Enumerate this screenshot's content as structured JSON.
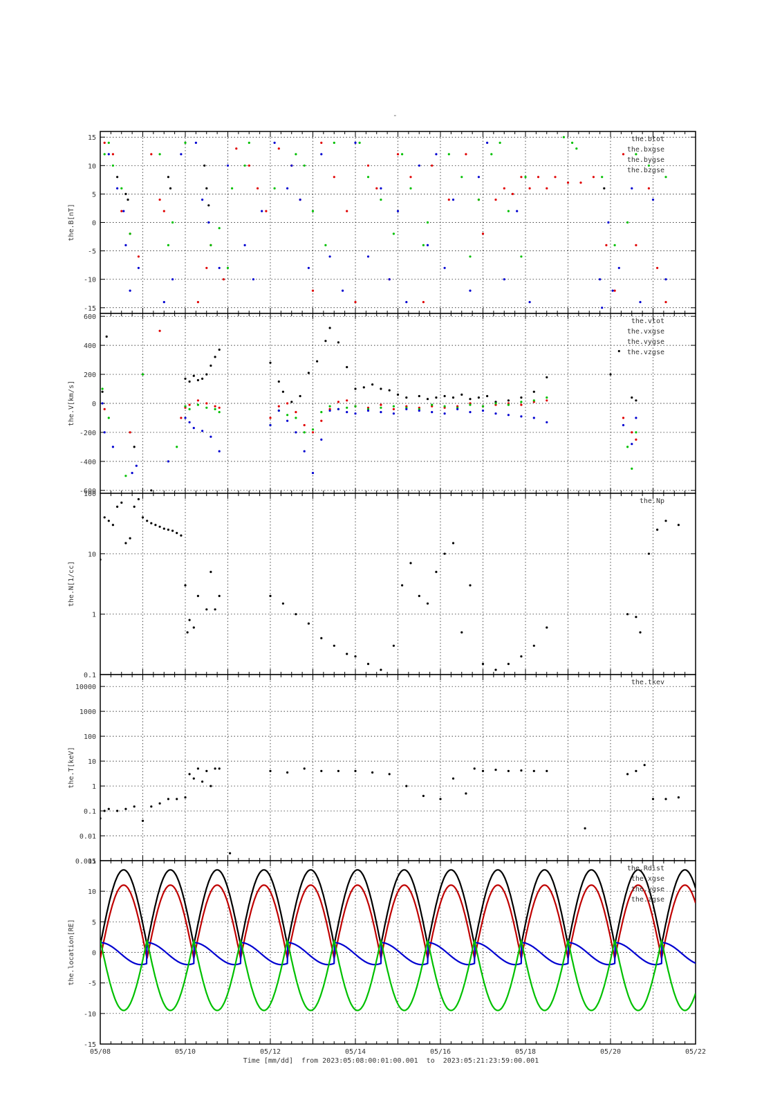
{
  "page": {
    "title": "-"
  },
  "x_axis": {
    "tick_labels": [
      "05/08",
      "05/10",
      "05/12",
      "05/14",
      "05/16",
      "05/18",
      "05/20",
      "05/22"
    ],
    "tick_days": [
      0,
      2,
      4,
      6,
      8,
      10,
      12,
      14
    ],
    "minor_step_days": 0.25,
    "range_days": [
      0,
      14
    ],
    "footer": "Time [mm/dd]  from 2023:05:08:00:01:00.001  to  2023:05:21:23:59:00.001"
  },
  "colors": {
    "black": "#000000",
    "red": "#e00000",
    "green": "#00c000",
    "blue": "#0000d0"
  },
  "chart_data": [
    {
      "type": "scatter",
      "ylabel": "the.B[nT]",
      "scale": "linear",
      "ylim": [
        -16,
        16
      ],
      "ticks": [
        -15,
        -10,
        -5,
        0,
        5,
        10,
        15
      ],
      "tick_labels": [
        "-15",
        "-10",
        "-5",
        "0",
        "5",
        "10",
        "15"
      ],
      "grid": true,
      "legend_placement": "top-right",
      "series": [
        {
          "name": "the.btot",
          "color": "#000000",
          "x": [
            0.4,
            0.6,
            0.65,
            1.6,
            1.65,
            2.45,
            2.5,
            2.55,
            11.85
          ],
          "y": [
            8,
            5,
            4,
            8,
            6,
            10,
            6,
            3,
            6
          ]
        },
        {
          "name": "the.bxgse",
          "color": "#e00000",
          "x": [
            0.1,
            0.3,
            0.5,
            0.7,
            0.9,
            1.2,
            1.4,
            1.5,
            2.3,
            2.5,
            2.6,
            2.9,
            3.2,
            3.5,
            3.7,
            3.9,
            4.2,
            4.5,
            4.7,
            5.0,
            5.2,
            5.5,
            5.8,
            6.0,
            6.3,
            6.5,
            6.8,
            7.0,
            7.3,
            7.6,
            7.8,
            8.2,
            8.6,
            8.9,
            9.0,
            9.3,
            9.5,
            9.7,
            9.9,
            10.1,
            10.3,
            10.5,
            10.7,
            11.0,
            11.3,
            11.6,
            11.9,
            12.1,
            12.3,
            12.6,
            12.9,
            13.1,
            13.3
          ],
          "y": [
            14,
            12,
            2,
            -2,
            -6,
            12,
            4,
            2,
            -14,
            -8,
            -4,
            -10,
            13,
            10,
            6,
            2,
            13,
            10,
            4,
            -12,
            14,
            8,
            2,
            -14,
            10,
            6,
            -10,
            12,
            8,
            -14,
            10,
            4,
            12,
            4,
            -2,
            4,
            6,
            5,
            8,
            6,
            8,
            6,
            8,
            7,
            7,
            8,
            -4,
            -12,
            12,
            -4,
            6,
            -8,
            -14
          ]
        },
        {
          "name": "the.bygse",
          "color": "#00c000",
          "x": [
            0.1,
            0.2,
            0.3,
            0.5,
            0.7,
            1.4,
            1.6,
            1.7,
            2.0,
            2.6,
            2.8,
            3.0,
            3.1,
            3.4,
            3.5,
            4.1,
            4.6,
            4.8,
            5.0,
            5.3,
            5.5,
            6.1,
            6.3,
            6.6,
            6.9,
            7.1,
            7.3,
            7.6,
            7.7,
            8.2,
            8.5,
            8.7,
            8.9,
            9.2,
            9.4,
            9.6,
            9.9,
            10.0,
            10.9,
            11.1,
            11.2,
            11.8,
            12.1,
            12.4,
            12.6,
            12.9,
            13.3
          ],
          "y": [
            12,
            14,
            10,
            6,
            -2,
            12,
            -4,
            0,
            14,
            -4,
            -1,
            -8,
            6,
            10,
            14,
            6,
            12,
            10,
            2,
            -4,
            14,
            14,
            8,
            4,
            -2,
            12,
            6,
            -4,
            0,
            12,
            8,
            -6,
            4,
            12,
            14,
            2,
            -6,
            8,
            15,
            14,
            13,
            8,
            -4,
            0,
            12,
            10,
            8
          ]
        },
        {
          "name": "the.bzgse",
          "color": "#0000d0",
          "x": [
            0.2,
            0.4,
            0.55,
            0.6,
            0.7,
            0.9,
            1.5,
            1.7,
            1.9,
            2.25,
            2.4,
            2.55,
            2.8,
            3.0,
            3.4,
            3.6,
            3.8,
            4.1,
            4.4,
            4.5,
            4.7,
            4.9,
            5.2,
            5.4,
            5.7,
            6.0,
            6.3,
            6.6,
            6.8,
            7.0,
            7.2,
            7.5,
            7.7,
            7.9,
            8.1,
            8.3,
            8.7,
            8.9,
            9.1,
            9.5,
            9.8,
            10.1,
            11.75,
            11.8,
            11.95,
            12.05,
            12.2,
            12.5,
            12.7,
            13.0,
            13.3
          ],
          "y": [
            12,
            6,
            2,
            -4,
            -12,
            -8,
            -14,
            -10,
            12,
            14,
            4,
            0,
            -8,
            10,
            -4,
            -10,
            2,
            14,
            6,
            10,
            4,
            -8,
            12,
            -6,
            -12,
            14,
            -6,
            6,
            -10,
            2,
            -14,
            10,
            -4,
            12,
            -8,
            4,
            -12,
            8,
            14,
            -10,
            2,
            -14,
            -10,
            -15,
            0,
            -12,
            -8,
            6,
            -14,
            4,
            -10
          ]
        }
      ]
    },
    {
      "type": "scatter",
      "ylabel": "the.V[km/s]",
      "scale": "linear",
      "ylim": [
        -620,
        620
      ],
      "ticks": [
        -600,
        -400,
        -200,
        0,
        200,
        400,
        600
      ],
      "tick_labels": [
        "-600",
        "-400",
        "-200",
        "0",
        "200",
        "400",
        "600"
      ],
      "grid": true,
      "legend_placement": "top-right",
      "series": [
        {
          "name": "the.vtot",
          "color": "#000000",
          "x": [
            0.05,
            0.15,
            0.8,
            1.2,
            2.0,
            2.1,
            2.2,
            2.3,
            2.4,
            2.5,
            2.6,
            2.7,
            2.8,
            4.0,
            4.2,
            4.3,
            4.5,
            4.7,
            4.9,
            5.1,
            5.3,
            5.4,
            5.6,
            5.8,
            6.0,
            6.2,
            6.4,
            6.6,
            6.8,
            7.0,
            7.2,
            7.5,
            7.7,
            7.9,
            8.1,
            8.3,
            8.5,
            8.7,
            8.9,
            9.1,
            9.3,
            9.6,
            9.9,
            10.2,
            10.5,
            12.0,
            12.2,
            12.5,
            12.6
          ],
          "y": [
            80,
            460,
            -300,
            -600,
            170,
            150,
            190,
            160,
            170,
            200,
            260,
            320,
            370,
            280,
            150,
            80,
            10,
            50,
            210,
            290,
            430,
            520,
            420,
            250,
            100,
            110,
            130,
            100,
            90,
            60,
            40,
            50,
            30,
            40,
            50,
            40,
            60,
            30,
            40,
            50,
            10,
            20,
            40,
            80,
            180,
            200,
            360,
            40,
            20
          ]
        },
        {
          "name": "the.vxgse",
          "color": "#e00000",
          "x": [
            0.1,
            0.7,
            1.4,
            1.9,
            2.0,
            2.1,
            2.3,
            2.5,
            2.7,
            2.8,
            4.0,
            4.2,
            4.4,
            4.6,
            4.8,
            5.0,
            5.2,
            5.4,
            5.6,
            5.8,
            6.0,
            6.3,
            6.6,
            6.9,
            7.2,
            7.5,
            7.8,
            8.1,
            8.4,
            8.7,
            9.0,
            9.3,
            9.6,
            9.9,
            10.2,
            10.5,
            12.3,
            12.5,
            12.6
          ],
          "y": [
            -40,
            -200,
            500,
            -100,
            -30,
            -10,
            20,
            0,
            -20,
            -30,
            -100,
            -20,
            0,
            -60,
            -150,
            -200,
            -120,
            -40,
            10,
            20,
            -20,
            -30,
            -10,
            -40,
            -20,
            -30,
            -20,
            -30,
            -20,
            0,
            -20,
            -10,
            0,
            -10,
            10,
            20,
            -100,
            -200,
            -250
          ]
        },
        {
          "name": "the.vygse",
          "color": "#00c000",
          "x": [
            0.05,
            0.2,
            0.6,
            1.0,
            1.8,
            2.0,
            2.1,
            2.3,
            2.5,
            2.7,
            2.8,
            4.0,
            4.2,
            4.4,
            4.6,
            4.8,
            5.0,
            5.2,
            5.4,
            5.6,
            5.8,
            6.0,
            6.3,
            6.6,
            6.9,
            7.2,
            7.5,
            7.8,
            8.1,
            8.4,
            8.7,
            9.0,
            9.3,
            9.6,
            9.9,
            10.2,
            10.5,
            12.4,
            12.5,
            12.6
          ],
          "y": [
            100,
            -100,
            -500,
            200,
            -300,
            -20,
            -40,
            -10,
            -30,
            -40,
            -60,
            -150,
            -50,
            -80,
            -100,
            -200,
            -180,
            -60,
            -20,
            -40,
            -30,
            -20,
            -40,
            -30,
            -20,
            -30,
            -40,
            -10,
            -20,
            -30,
            -10,
            -20,
            0,
            -10,
            10,
            20,
            40,
            -300,
            -450,
            -200
          ]
        },
        {
          "name": "the.vzgse",
          "color": "#0000d0",
          "x": [
            0.05,
            0.1,
            0.3,
            0.75,
            0.85,
            1.6,
            2.0,
            2.1,
            2.2,
            2.4,
            2.6,
            2.8,
            4.0,
            4.2,
            4.4,
            4.6,
            4.8,
            5.0,
            5.2,
            5.4,
            5.6,
            5.8,
            6.0,
            6.3,
            6.6,
            6.9,
            7.2,
            7.5,
            7.8,
            8.1,
            8.4,
            8.7,
            9.0,
            9.3,
            9.6,
            9.9,
            10.2,
            10.5,
            12.3,
            12.5,
            12.6
          ],
          "y": [
            0,
            -200,
            -300,
            -480,
            -430,
            -400,
            -100,
            -130,
            -170,
            -190,
            -230,
            -330,
            -150,
            -50,
            -120,
            -200,
            -330,
            -480,
            -250,
            -50,
            -40,
            -60,
            -70,
            -50,
            -60,
            -70,
            -40,
            -50,
            -60,
            -70,
            -40,
            -60,
            -50,
            -70,
            -80,
            -90,
            -100,
            -130,
            -150,
            -280,
            -100
          ]
        }
      ]
    },
    {
      "type": "scatter",
      "ylabel": "the.N[1/cc]",
      "scale": "log",
      "ylim": [
        0.1,
        100
      ],
      "ticks": [
        0.1,
        1,
        10,
        100
      ],
      "tick_labels": [
        "0.1",
        "1",
        "10",
        "100"
      ],
      "grid": true,
      "legend_placement": "top-right",
      "series": [
        {
          "name": "the.Np",
          "color": "#000000",
          "x": [
            0.0,
            0.1,
            0.2,
            0.3,
            0.4,
            0.5,
            0.6,
            0.7,
            0.8,
            0.9,
            1.0,
            1.1,
            1.2,
            1.3,
            1.4,
            1.5,
            1.6,
            1.7,
            1.8,
            1.9,
            2.0,
            2.05,
            2.1,
            2.2,
            2.3,
            2.5,
            2.6,
            2.7,
            2.8,
            4.0,
            4.3,
            4.6,
            4.9,
            5.2,
            5.5,
            5.8,
            6.0,
            6.3,
            6.6,
            6.9,
            7.1,
            7.3,
            7.5,
            7.7,
            7.9,
            8.1,
            8.3,
            8.5,
            8.7,
            9.0,
            9.3,
            9.6,
            9.9,
            10.2,
            10.5,
            12.4,
            12.6,
            12.7,
            12.9,
            13.1,
            13.3,
            13.6
          ],
          "y": [
            8,
            40,
            35,
            30,
            60,
            70,
            15,
            18,
            60,
            80,
            40,
            35,
            32,
            30,
            28,
            26,
            25,
            24,
            22,
            20,
            3,
            0.5,
            0.8,
            0.6,
            2,
            1.2,
            5,
            1.2,
            2,
            2,
            1.5,
            1,
            0.7,
            0.4,
            0.3,
            0.22,
            0.2,
            0.15,
            0.12,
            0.3,
            3,
            7,
            2,
            1.5,
            5,
            10,
            15,
            0.5,
            3,
            0.15,
            0.12,
            0.15,
            0.2,
            0.3,
            0.6,
            1,
            0.9,
            0.5,
            10,
            25,
            35,
            30
          ]
        }
      ]
    },
    {
      "type": "scatter",
      "ylabel": "the.T[keV]",
      "scale": "log",
      "ylim": [
        0.001,
        30000
      ],
      "ticks": [
        0.001,
        0.01,
        0.1,
        1,
        10,
        100,
        1000,
        10000
      ],
      "tick_labels": [
        "0.001",
        "0.01",
        "0.1",
        "1",
        "10",
        "100",
        "1000",
        "10000"
      ],
      "grid": true,
      "legend_placement": "top-right",
      "series": [
        {
          "name": "the.tkev",
          "color": "#000000",
          "x": [
            0.0,
            0.1,
            0.2,
            0.4,
            0.6,
            0.8,
            1.0,
            1.2,
            1.4,
            1.6,
            1.8,
            2.0,
            2.1,
            2.2,
            2.3,
            2.4,
            2.5,
            2.6,
            2.7,
            2.8,
            3.05,
            4.0,
            4.4,
            4.8,
            5.2,
            5.6,
            6.0,
            6.4,
            6.8,
            7.2,
            7.6,
            8.0,
            8.3,
            8.6,
            8.8,
            9.0,
            9.3,
            9.6,
            9.9,
            10.2,
            10.5,
            11.4,
            12.4,
            12.6,
            12.8,
            13.0,
            13.3,
            13.6
          ],
          "y": [
            0.05,
            0.1,
            0.12,
            0.1,
            0.12,
            0.15,
            0.04,
            0.15,
            0.2,
            0.3,
            0.3,
            0.35,
            3,
            2,
            5,
            1.5,
            4,
            1,
            5,
            5,
            0.002,
            4,
            3.5,
            5,
            4,
            4,
            4,
            3.5,
            3,
            1,
            0.4,
            0.3,
            2,
            0.5,
            5,
            4,
            4.5,
            4,
            4.2,
            4,
            4,
            0.02,
            3,
            4,
            7,
            0.3,
            0.3,
            0.35
          ]
        }
      ]
    },
    {
      "type": "line",
      "ylabel": "the.location[RE]",
      "scale": "linear",
      "ylim": [
        -15,
        15
      ],
      "ticks": [
        -15,
        -10,
        -5,
        0,
        5,
        10,
        15
      ],
      "tick_labels": [
        "-15",
        "-10",
        "-5",
        "0",
        "5",
        "10",
        "15"
      ],
      "grid": true,
      "legend_placement": "top-right",
      "orbit_period_days": 1.1,
      "series": [
        {
          "name": "the.Rdist",
          "color": "#000000",
          "apogee": 13.5
        },
        {
          "name": "the.xgse",
          "color": "#c00000",
          "apogee": 11
        },
        {
          "name": "the.ygse",
          "color": "#0000d0",
          "apogee": 1.8
        },
        {
          "name": "the.zgse",
          "color": "#00c000",
          "apogee": -9.5
        }
      ]
    }
  ]
}
